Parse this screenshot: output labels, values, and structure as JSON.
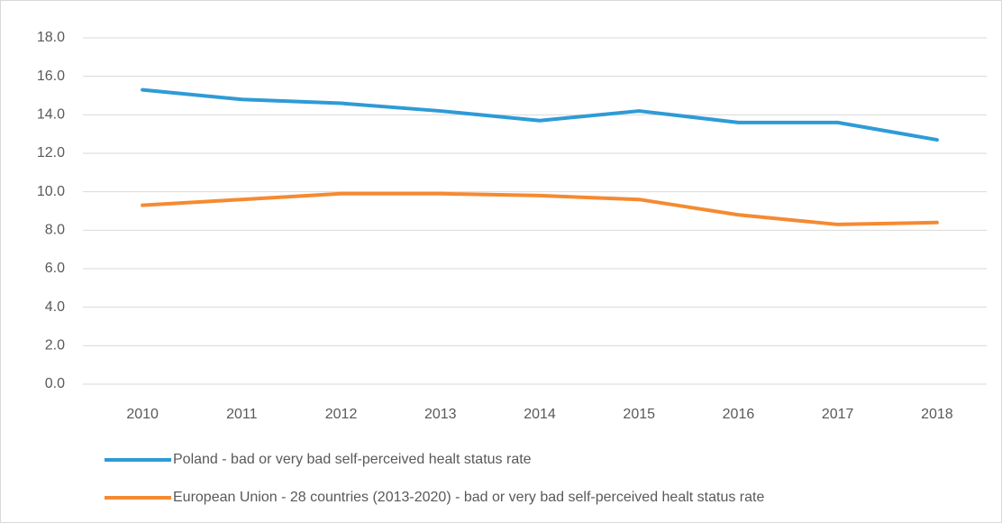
{
  "chart_data": {
    "type": "line",
    "categories": [
      "2010",
      "2011",
      "2012",
      "2013",
      "2014",
      "2015",
      "2016",
      "2017",
      "2018"
    ],
    "series": [
      {
        "name": "Poland - bad or very bad self-perceived healt status rate",
        "color": "#2e9bd6",
        "values": [
          15.3,
          14.8,
          14.6,
          14.2,
          13.7,
          14.2,
          13.6,
          13.6,
          12.7
        ]
      },
      {
        "name": "European Union - 28 countries (2013-2020) - bad or very bad self-perceived healt status rate",
        "color": "#f58a31",
        "values": [
          9.3,
          9.6,
          9.9,
          9.9,
          9.8,
          9.6,
          8.8,
          8.3,
          8.4
        ]
      }
    ],
    "ylim": [
      0,
      18
    ],
    "yticks": [
      {
        "value": 0,
        "label": "0.0"
      },
      {
        "value": 2,
        "label": "2.0"
      },
      {
        "value": 4,
        "label": "4.0"
      },
      {
        "value": 6,
        "label": "6.0"
      },
      {
        "value": 8,
        "label": "8.0"
      },
      {
        "value": 10,
        "label": "10.0"
      },
      {
        "value": 12,
        "label": "12.0"
      },
      {
        "value": 14,
        "label": "14.0"
      },
      {
        "value": 16,
        "label": "16.0"
      },
      {
        "value": 18,
        "label": "18.0"
      }
    ],
    "grid": true
  }
}
